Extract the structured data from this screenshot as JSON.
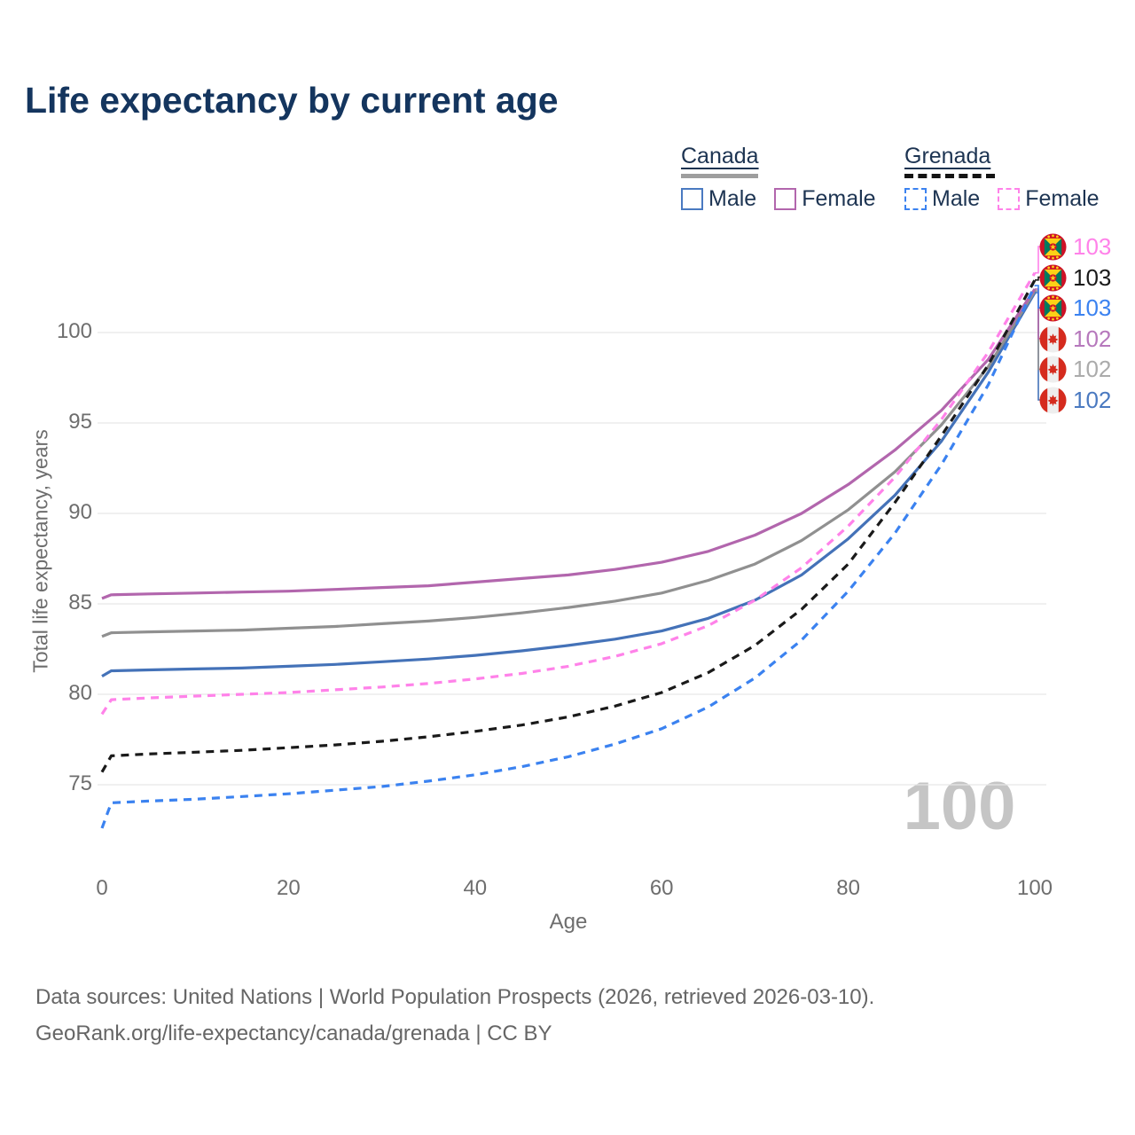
{
  "header": {
    "title": "Life expectancy by current age"
  },
  "legend": {
    "canada": {
      "label": "Canada",
      "male_label": "Male",
      "female_label": "Female"
    },
    "grenada": {
      "label": "Grenada",
      "male_label": "Male",
      "female_label": "Female"
    }
  },
  "chart_data": {
    "type": "line",
    "title": "Life expectancy by current age",
    "xlabel": "Age",
    "ylabel": "Total life expectancy, years",
    "x_ticks": [
      0,
      20,
      40,
      60,
      80,
      100
    ],
    "y_ticks": [
      75,
      80,
      85,
      90,
      95,
      100
    ],
    "xlim": [
      0,
      100
    ],
    "ylim": [
      72.5,
      103.5
    ],
    "grid": "horizontal",
    "legend_position": "top-right",
    "age_watermark": "100",
    "x": [
      0,
      1,
      5,
      10,
      15,
      20,
      25,
      30,
      35,
      40,
      45,
      50,
      55,
      60,
      65,
      70,
      75,
      80,
      85,
      90,
      95,
      100
    ],
    "series": [
      {
        "name": "Canada Male",
        "country": "Canada",
        "sex": "Male",
        "color": "#4472b8",
        "dash": "solid",
        "end_label_slot": 5,
        "values": [
          81.0,
          81.3,
          81.35,
          81.4,
          81.45,
          81.55,
          81.65,
          81.8,
          81.95,
          82.15,
          82.4,
          82.7,
          83.05,
          83.5,
          84.2,
          85.2,
          86.6,
          88.6,
          91.0,
          94.0,
          97.8,
          102.2
        ]
      },
      {
        "name": "Canada Both sexes",
        "country": "Canada",
        "sex": "Both",
        "color": "#909090",
        "dash": "solid",
        "end_label_slot": 4,
        "values": [
          83.2,
          83.4,
          83.45,
          83.5,
          83.55,
          83.65,
          83.75,
          83.9,
          84.05,
          84.25,
          84.5,
          84.8,
          85.15,
          85.6,
          86.3,
          87.2,
          88.5,
          90.2,
          92.3,
          94.9,
          98.1,
          102.3
        ]
      },
      {
        "name": "Canada Female",
        "country": "Canada",
        "sex": "Female",
        "color": "#b266ad",
        "dash": "solid",
        "end_label_slot": 3,
        "values": [
          85.3,
          85.5,
          85.55,
          85.6,
          85.65,
          85.7,
          85.8,
          85.9,
          86.0,
          86.2,
          86.4,
          86.6,
          86.9,
          87.3,
          87.9,
          88.8,
          90.0,
          91.6,
          93.5,
          95.7,
          98.5,
          102.4
        ]
      },
      {
        "name": "Grenada Male",
        "country": "Grenada",
        "sex": "Male",
        "color": "#3b82f0",
        "dash": "dashed",
        "end_label_slot": 2,
        "values": [
          72.6,
          74.0,
          74.1,
          74.2,
          74.35,
          74.5,
          74.7,
          74.9,
          75.2,
          75.55,
          76.0,
          76.55,
          77.25,
          78.1,
          79.3,
          80.9,
          83.0,
          85.7,
          88.9,
          92.7,
          97.1,
          102.6
        ]
      },
      {
        "name": "Grenada Both sexes",
        "country": "Grenada",
        "sex": "Both",
        "color": "#1a1a1a",
        "dash": "dashed",
        "end_label_slot": 1,
        "values": [
          75.7,
          76.6,
          76.7,
          76.8,
          76.9,
          77.05,
          77.2,
          77.4,
          77.65,
          77.95,
          78.3,
          78.75,
          79.35,
          80.1,
          81.2,
          82.7,
          84.7,
          87.2,
          90.6,
          94.3,
          98.2,
          102.9
        ]
      },
      {
        "name": "Grenada Female",
        "country": "Grenada",
        "sex": "Female",
        "color": "#ff82e9",
        "dash": "dashed",
        "end_label_slot": 0,
        "values": [
          78.9,
          79.7,
          79.8,
          79.9,
          80.0,
          80.1,
          80.25,
          80.4,
          80.6,
          80.85,
          81.15,
          81.55,
          82.1,
          82.8,
          83.8,
          85.2,
          87.0,
          89.3,
          92.0,
          95.2,
          98.9,
          103.3
        ]
      }
    ],
    "end_labels": [
      {
        "country": "Grenada",
        "value": "103",
        "color": "#ff82e9"
      },
      {
        "country": "Grenada",
        "value": "103",
        "color": "#1a1a1a"
      },
      {
        "country": "Grenada",
        "value": "103",
        "color": "#3b82f0"
      },
      {
        "country": "Canada",
        "value": "102",
        "color": "#b678bc"
      },
      {
        "country": "Canada",
        "value": "102",
        "color": "#ababab"
      },
      {
        "country": "Canada",
        "value": "102",
        "color": "#4a79c0"
      }
    ]
  },
  "footer": {
    "line1": "Data sources: United Nations | World Population Prospects (2026, retrieved 2026-03-10).",
    "line2": "GeoRank.org/life-expectancy/canada/grenada | CC BY"
  }
}
